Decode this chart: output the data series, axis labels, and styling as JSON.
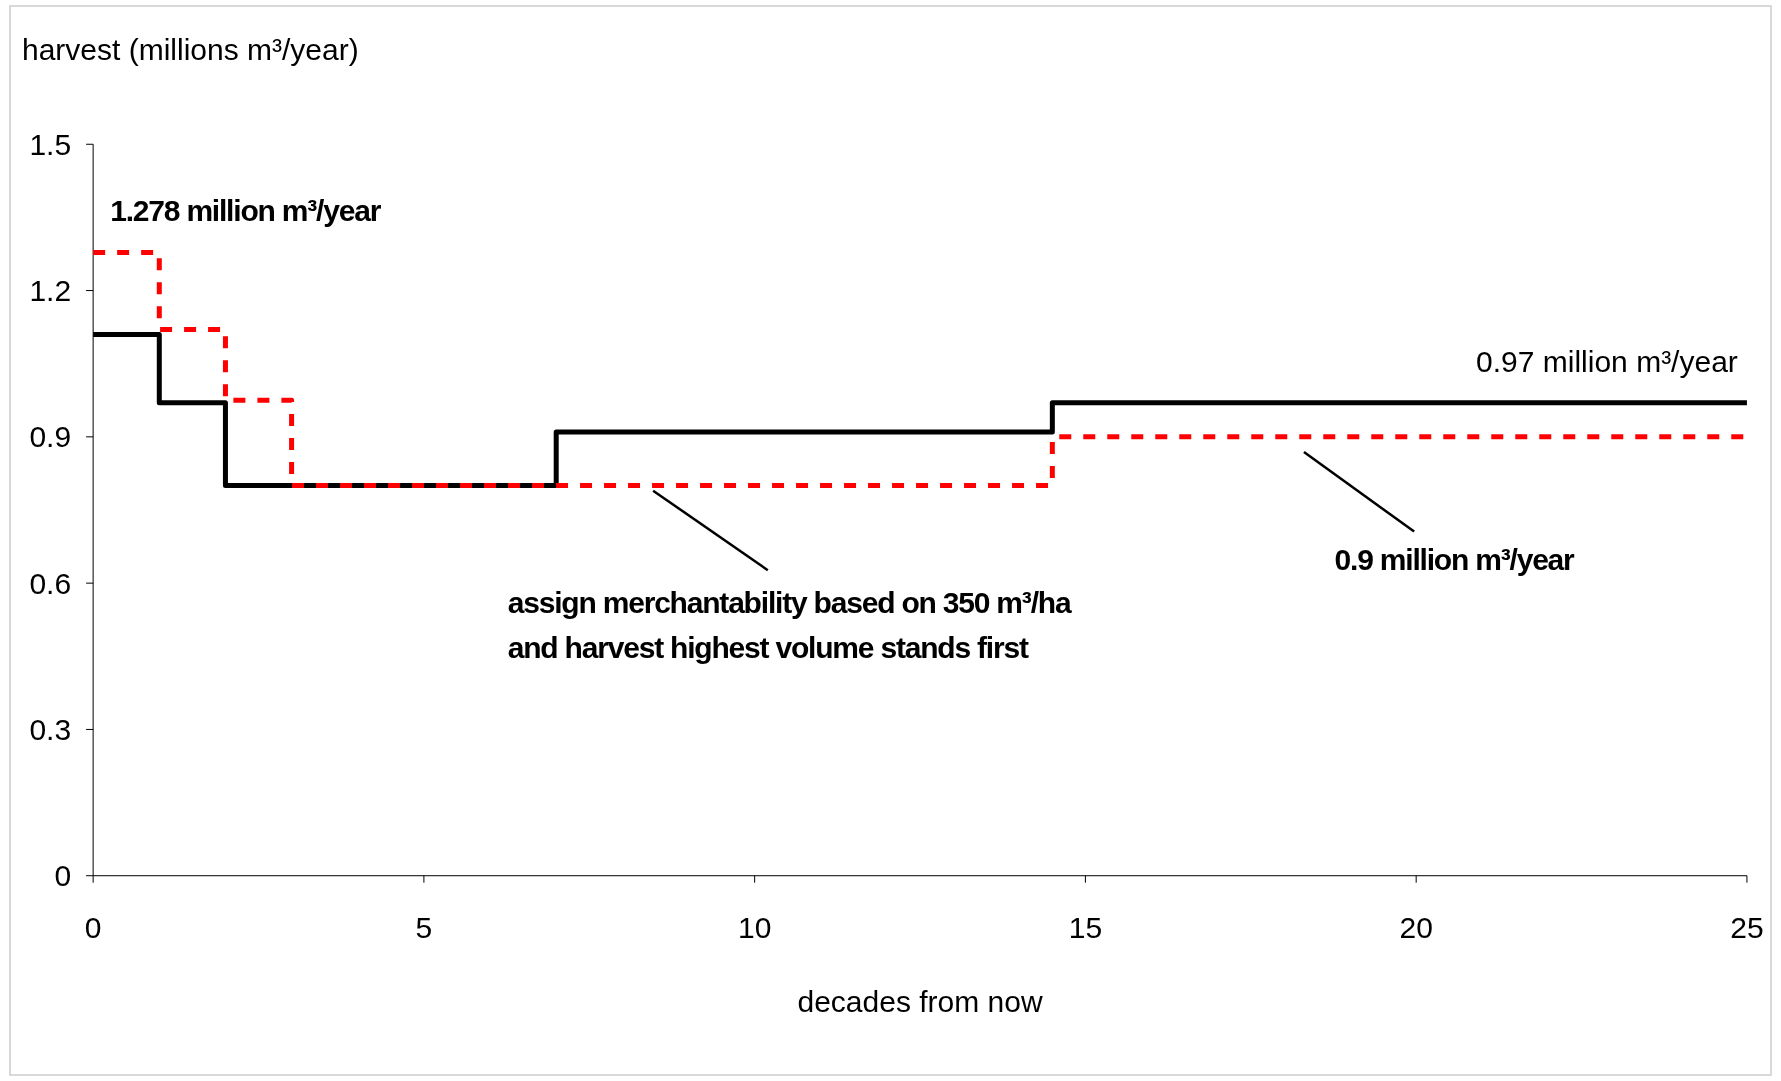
{
  "chart_data": {
    "type": "step",
    "ylabel": "harvest (millions m³/year)",
    "xlabel": "decades from now",
    "xlim": [
      0,
      25
    ],
    "xticks": [
      0,
      5,
      10,
      15,
      20,
      25
    ],
    "ylim": [
      0,
      1.5
    ],
    "yticks": [
      0,
      0.3,
      0.6,
      0.9,
      1.2,
      1.5
    ],
    "grid": false,
    "series": [
      {
        "color": "#000000",
        "line_style": "solid",
        "x": [
          0,
          1,
          2,
          7,
          14.5,
          25
        ],
        "values": [
          1.11,
          0.97,
          0.8,
          0.91,
          0.97,
          0.97
        ]
      },
      {
        "color": "#ff0000",
        "line_style": "dashed",
        "x": [
          0,
          1,
          2,
          3,
          14.5,
          25
        ],
        "values": [
          1.278,
          1.12,
          0.975,
          0.8,
          0.9,
          0.9
        ]
      }
    ],
    "annotations": [
      {
        "text": "1.278 million m³/year",
        "x": 0,
        "y": 1.278
      },
      {
        "text": "0.97 million m³/year",
        "x": 25,
        "y": 0.97
      },
      "0.9 million m³/year",
      "assign merchantability based on 350 m³/ha\nand harvest highest volume stands first"
    ]
  }
}
